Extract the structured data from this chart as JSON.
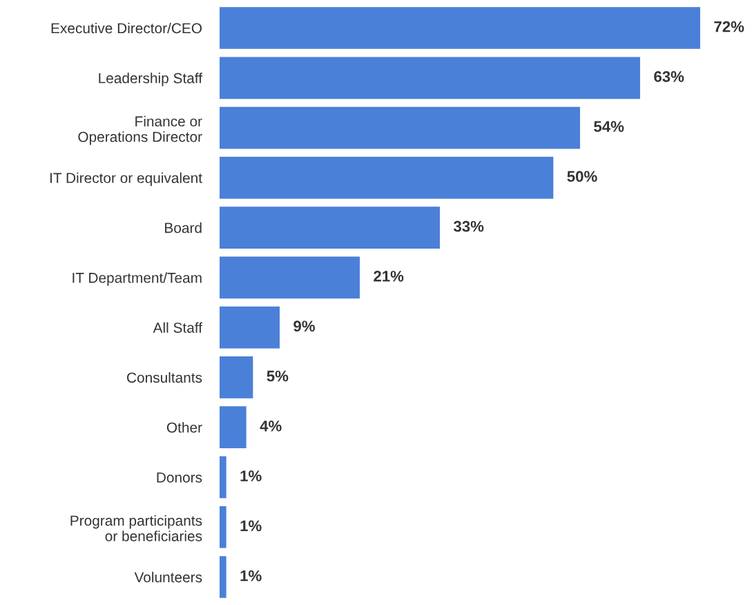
{
  "chart_data": {
    "type": "bar",
    "orientation": "horizontal",
    "categories": [
      "Executive Director/CEO",
      "Leadership Staff",
      "Finance or\nOperations Director",
      "IT Director or equivalent",
      "Board",
      "IT Department/Team",
      "All Staff",
      "Consultants",
      "Other",
      "Donors",
      "Program participants\nor beneficiaries",
      "Volunteers"
    ],
    "values": [
      72,
      63,
      54,
      50,
      33,
      21,
      9,
      5,
      4,
      1,
      1,
      1
    ],
    "value_labels": [
      "72%",
      "63%",
      "54%",
      "50%",
      "33%",
      "21%",
      "9%",
      "5%",
      "4%",
      "1%",
      "1%",
      "1%"
    ],
    "color": "#4a80d8",
    "grid": false,
    "legend": false
  }
}
